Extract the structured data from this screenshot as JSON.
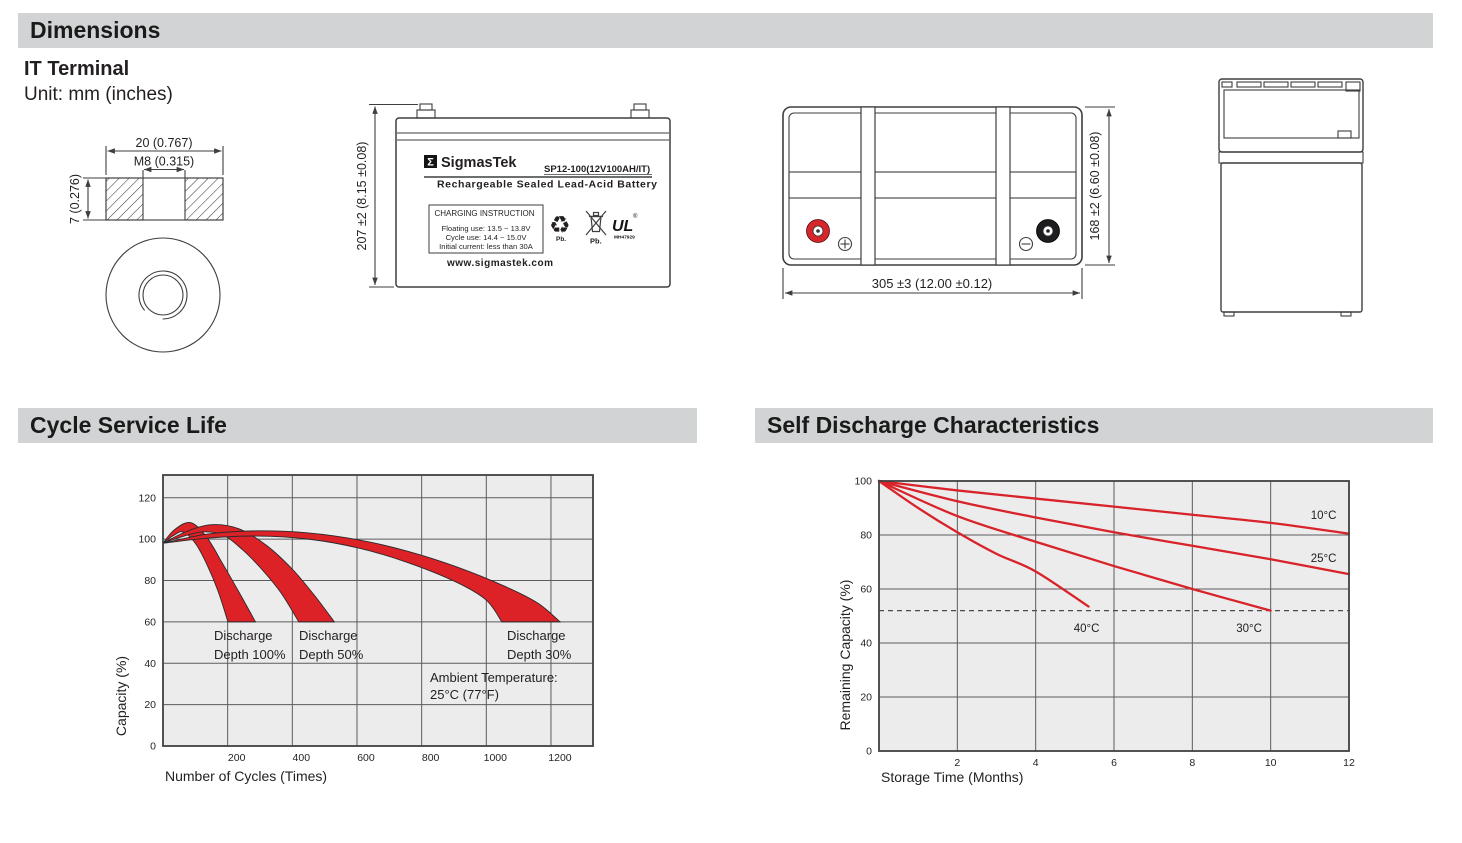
{
  "page": {
    "section_dimensions": "Dimensions",
    "terminal_type": "IT Terminal",
    "unit_note": "Unit: mm (inches)",
    "section_cycle": "Cycle Service Life",
    "section_self_discharge": "Self Discharge Characteristics"
  },
  "drawings": {
    "terminal": {
      "width_dim": "20 (0.767)",
      "thread_dim": "M8 (0.315)",
      "height_dim": "7 (0.276)"
    },
    "front_view": {
      "height_dim": "207 ±2 (8.15 ±0.08)",
      "label": {
        "logo_glyph": "Σ",
        "brand": "SigmasTek",
        "model": "SP12-100(12V100AH/IT)",
        "subtitle": "Rechargeable Sealed Lead-Acid Battery",
        "charging_title": "CHARGING INSTRUCTION",
        "charging_lines": [
          "Floating use: 13.5 ~ 13.8V",
          "Cycle use: 14.4 ~ 15.0V",
          "Initial current: less than 30A"
        ],
        "website": "www.sigmastek.com",
        "recycle_glyph": "♻",
        "pb_recycle": "Pb.",
        "pb_bin": "Pb.",
        "ul_mark": "UL",
        "ul_reg": "®",
        "ul_number": "MH47929"
      }
    },
    "top_view": {
      "width_dim": "305 ±3 (12.00 ±0.12)",
      "depth_dim": "168 ±2 (6.60 ±0.08)"
    }
  },
  "chart_data": [
    {
      "type": "area",
      "title": "Cycle Service Life",
      "xlabel": "Number of Cycles (Times)",
      "ylabel": "Capacity (%)",
      "xlim": [
        0,
        1330
      ],
      "ylim": [
        0,
        131
      ],
      "x_ticks": [
        200,
        400,
        600,
        800,
        1000,
        1200
      ],
      "y_ticks": [
        0,
        20,
        40,
        60,
        80,
        100,
        120
      ],
      "grid": true,
      "legend_position": "none",
      "series_color": "#dc2127",
      "bands": [
        {
          "name": "Discharge Depth 100%",
          "upper": [
            [
              0,
              98
            ],
            [
              35,
              104.5
            ],
            [
              85,
              108
            ],
            [
              135,
              101
            ],
            [
              185,
              88
            ],
            [
              240,
              73
            ],
            [
              286,
              60
            ]
          ],
          "lower": [
            [
              0,
              98
            ],
            [
              30,
              101.5
            ],
            [
              62,
              103.5
            ],
            [
              100,
              98
            ],
            [
              135,
              88
            ],
            [
              170,
              75
            ],
            [
              201,
              60
            ]
          ]
        },
        {
          "name": "Discharge Depth 50%",
          "upper": [
            [
              0,
              98
            ],
            [
              70,
              103.5
            ],
            [
              150,
              107
            ],
            [
              235,
              105
            ],
            [
              320,
              97
            ],
            [
              400,
              85.5
            ],
            [
              470,
              72.5
            ],
            [
              530,
              60
            ]
          ],
          "lower": [
            [
              0,
              98
            ],
            [
              55,
              101
            ],
            [
              120,
              103.5
            ],
            [
              185,
              102
            ],
            [
              245,
              95
            ],
            [
              305,
              85.5
            ],
            [
              365,
              74
            ],
            [
              420,
              60
            ]
          ]
        },
        {
          "name": "Discharge Depth 30%",
          "upper": [
            [
              0,
              98
            ],
            [
              140,
              102.5
            ],
            [
              290,
              104
            ],
            [
              450,
              103
            ],
            [
              610,
              99.5
            ],
            [
              760,
              94
            ],
            [
              910,
              86.5
            ],
            [
              1060,
              77
            ],
            [
              1160,
              69
            ],
            [
              1228,
              60
            ]
          ],
          "lower": [
            [
              0,
              98
            ],
            [
              140,
              100.5
            ],
            [
              290,
              101.5
            ],
            [
              450,
              100
            ],
            [
              610,
              95.5
            ],
            [
              760,
              88.5
            ],
            [
              910,
              79
            ],
            [
              1000,
              70.5
            ],
            [
              1048,
              60
            ]
          ]
        }
      ],
      "annotations": [
        {
          "lines": [
            "Discharge",
            "Depth 100%"
          ]
        },
        {
          "lines": [
            "Discharge",
            "Depth 50%"
          ]
        },
        {
          "lines": [
            "Discharge",
            "Depth 30%"
          ]
        }
      ],
      "note_lines": [
        "Ambient Temperature:",
        "25°C (77°F)"
      ]
    },
    {
      "type": "line",
      "title": "Self Discharge Characteristics",
      "xlabel": "Storage Time (Months)",
      "ylabel": "Remaining Capacity (%)",
      "xlim": [
        0,
        12
      ],
      "ylim": [
        0,
        100
      ],
      "x_ticks": [
        2,
        4,
        6,
        8,
        10,
        12
      ],
      "y_ticks": [
        0,
        20,
        40,
        60,
        80,
        100
      ],
      "grid": true,
      "dashed_y": 52,
      "series_color": "#d8232a",
      "series": [
        {
          "name": "10°C",
          "points": [
            [
              0,
              100
            ],
            [
              2,
              96.5
            ],
            [
              4,
              93.5
            ],
            [
              6,
              90.5
            ],
            [
              8,
              87.5
            ],
            [
              10,
              84.5
            ],
            [
              12,
              80.5
            ]
          ],
          "label_pos": [
            11.35,
            87.5
          ]
        },
        {
          "name": "25°C",
          "points": [
            [
              0,
              100
            ],
            [
              2,
              92.5
            ],
            [
              4,
              86.5
            ],
            [
              6,
              81
            ],
            [
              8,
              76
            ],
            [
              10,
              71
            ],
            [
              12,
              65.5
            ]
          ],
          "label_pos": [
            11.35,
            71.5
          ]
        },
        {
          "name": "30°C",
          "points": [
            [
              0,
              100
            ],
            [
              2,
              87
            ],
            [
              4,
              77.5
            ],
            [
              6,
              68.5
            ],
            [
              8,
              60
            ],
            [
              10,
              52
            ]
          ],
          "label_pos": [
            9.45,
            45.5
          ]
        },
        {
          "name": "40°C",
          "points": [
            [
              0,
              100
            ],
            [
              1,
              90
            ],
            [
              2,
              81
            ],
            [
              3,
              73
            ],
            [
              4,
              66.5
            ],
            [
              5.35,
              53.5
            ]
          ],
          "label_pos": [
            5.3,
            45.5
          ]
        }
      ]
    }
  ]
}
